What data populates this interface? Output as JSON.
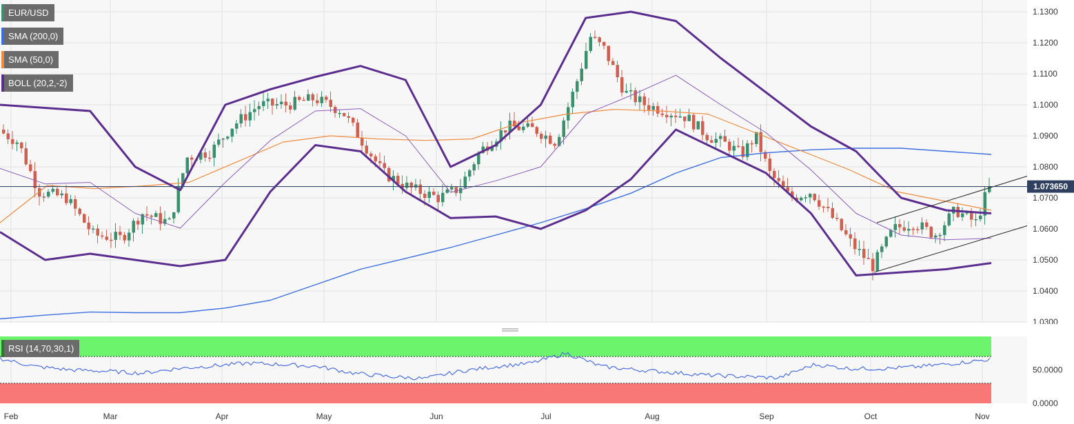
{
  "legends": {
    "symbol": "EUR/USD",
    "sma200": "SMA (200,0)",
    "sma50": "SMA (50,0)",
    "boll": "BOLL (20,2,-2)",
    "rsi": "RSI (14,70,30,1)"
  },
  "colors": {
    "up": "#3c8f6e",
    "down": "#cf5f4e",
    "sma200": "#3b6fe0",
    "sma50": "#f08a3c",
    "boll_outer": "#5b2d8e",
    "boll_mid": "#8a5bb8",
    "rsi_line": "#4a6ee0",
    "rsi_upper_zone": "#6cf56c",
    "rsi_lower_zone": "#f87777",
    "price_line": "#3a4a6a",
    "price_tag": "#2f3f5f"
  },
  "current_price": "1.073650",
  "chart_data": [
    {
      "type": "candlestick",
      "title": "EUR/USD",
      "x_labels": [
        "Feb",
        "Mar",
        "Apr",
        "May",
        "Jun",
        "Jul",
        "Aug",
        "Sep",
        "Oct",
        "Nov"
      ],
      "y_ticks": [
        "1.1300",
        "1.1200",
        "1.1100",
        "1.1000",
        "1.0900",
        "1.0800",
        "1.0700",
        "1.0600",
        "1.0500",
        "1.0400",
        "1.0300"
      ],
      "ylim": [
        1.028,
        1.132
      ],
      "grid": true,
      "indicators": [
        "SMA (200,0)",
        "SMA (50,0)",
        "BOLL (20,2,-2)"
      ],
      "series": [
        {
          "name": "SMA (200,0)",
          "values": [
            1.031,
            1.0322,
            1.0332,
            1.033,
            1.033,
            1.0345,
            1.037,
            1.042,
            1.047,
            1.0505,
            1.054,
            1.058,
            1.062,
            1.0665,
            1.0715,
            1.078,
            1.083,
            1.0845,
            1.0855,
            1.086,
            1.086,
            1.085,
            1.084
          ]
        },
        {
          "name": "SMA (50,0)",
          "values": [
            1.062,
            1.074,
            1.073,
            1.0738,
            1.075,
            1.0815,
            1.088,
            1.09,
            1.089,
            1.0885,
            1.089,
            1.0942,
            1.097,
            1.0985,
            1.098,
            1.097,
            1.091,
            1.085,
            1.079,
            1.072,
            1.069,
            1.066
          ]
        },
        {
          "name": "BOLL upper",
          "values": [
            1.1,
            1.099,
            1.098,
            1.08,
            1.0725,
            1.1,
            1.105,
            1.109,
            1.1125,
            1.108,
            1.08,
            1.087,
            1.1,
            1.128,
            1.13,
            1.127,
            1.115,
            1.104,
            1.093,
            1.085,
            1.07,
            1.066,
            1.065
          ]
        },
        {
          "name": "BOLL lower",
          "values": [
            1.059,
            1.05,
            1.052,
            1.05,
            1.048,
            1.05,
            1.072,
            1.087,
            1.085,
            1.072,
            1.0635,
            1.064,
            1.06,
            1.066,
            1.076,
            1.092,
            1.085,
            1.078,
            1.065,
            1.045,
            1.046,
            1.047,
            1.049
          ]
        }
      ],
      "trend_channel": {
        "upper_start": 1.062,
        "upper_end": 1.077,
        "lower_start": 1.046,
        "lower_end": 1.061
      },
      "last_close": 1.07365
    },
    {
      "type": "line",
      "title": "RSI (14,70,30,1)",
      "y_ticks": [
        "50.0000",
        "0.0000"
      ],
      "ylim": [
        0,
        100
      ],
      "overbought": 70,
      "oversold": 30,
      "series": [
        {
          "name": "RSI (14,70,30,1)",
          "values": [
            67,
            55,
            50,
            48,
            45,
            52,
            56,
            60,
            58,
            55,
            45,
            40,
            37,
            48,
            55,
            60,
            75,
            55,
            50,
            46,
            42,
            40,
            38,
            58,
            52,
            52,
            55,
            60,
            66
          ]
        }
      ]
    }
  ]
}
